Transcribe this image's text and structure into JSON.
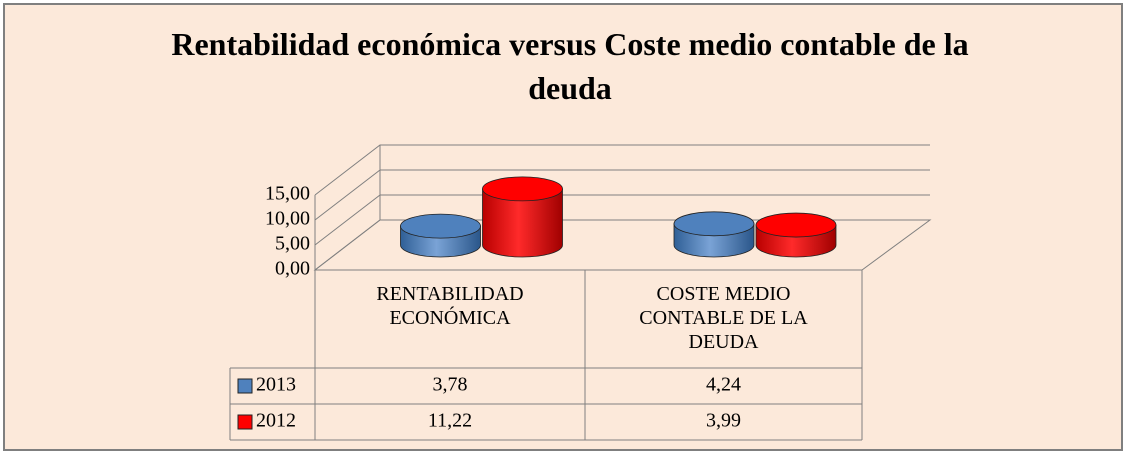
{
  "chart_data": {
    "type": "bar3d",
    "title": "Rentabilidad económica versus Coste medio contable de la deuda",
    "categories": [
      "RENTABILIDAD ECONÓMICA",
      "COSTE MEDIO CONTABLE DE LA DEUDA"
    ],
    "series": [
      {
        "name": "2013",
        "color": "#4f81bd",
        "values": [
          3.78,
          4.24
        ],
        "value_labels": [
          "3,78",
          "4,24"
        ]
      },
      {
        "name": "2012",
        "color": "#ff0000",
        "values": [
          11.22,
          3.99
        ],
        "value_labels": [
          "11,22",
          "3,99"
        ]
      }
    ],
    "ylim": [
      0,
      15
    ],
    "yticks": [
      {
        "value": 0,
        "label": "0,00"
      },
      {
        "value": 5,
        "label": "5,00"
      },
      {
        "value": 10,
        "label": "10,00"
      },
      {
        "value": 15,
        "label": "15,00"
      }
    ],
    "grid": true,
    "legend": "table"
  }
}
